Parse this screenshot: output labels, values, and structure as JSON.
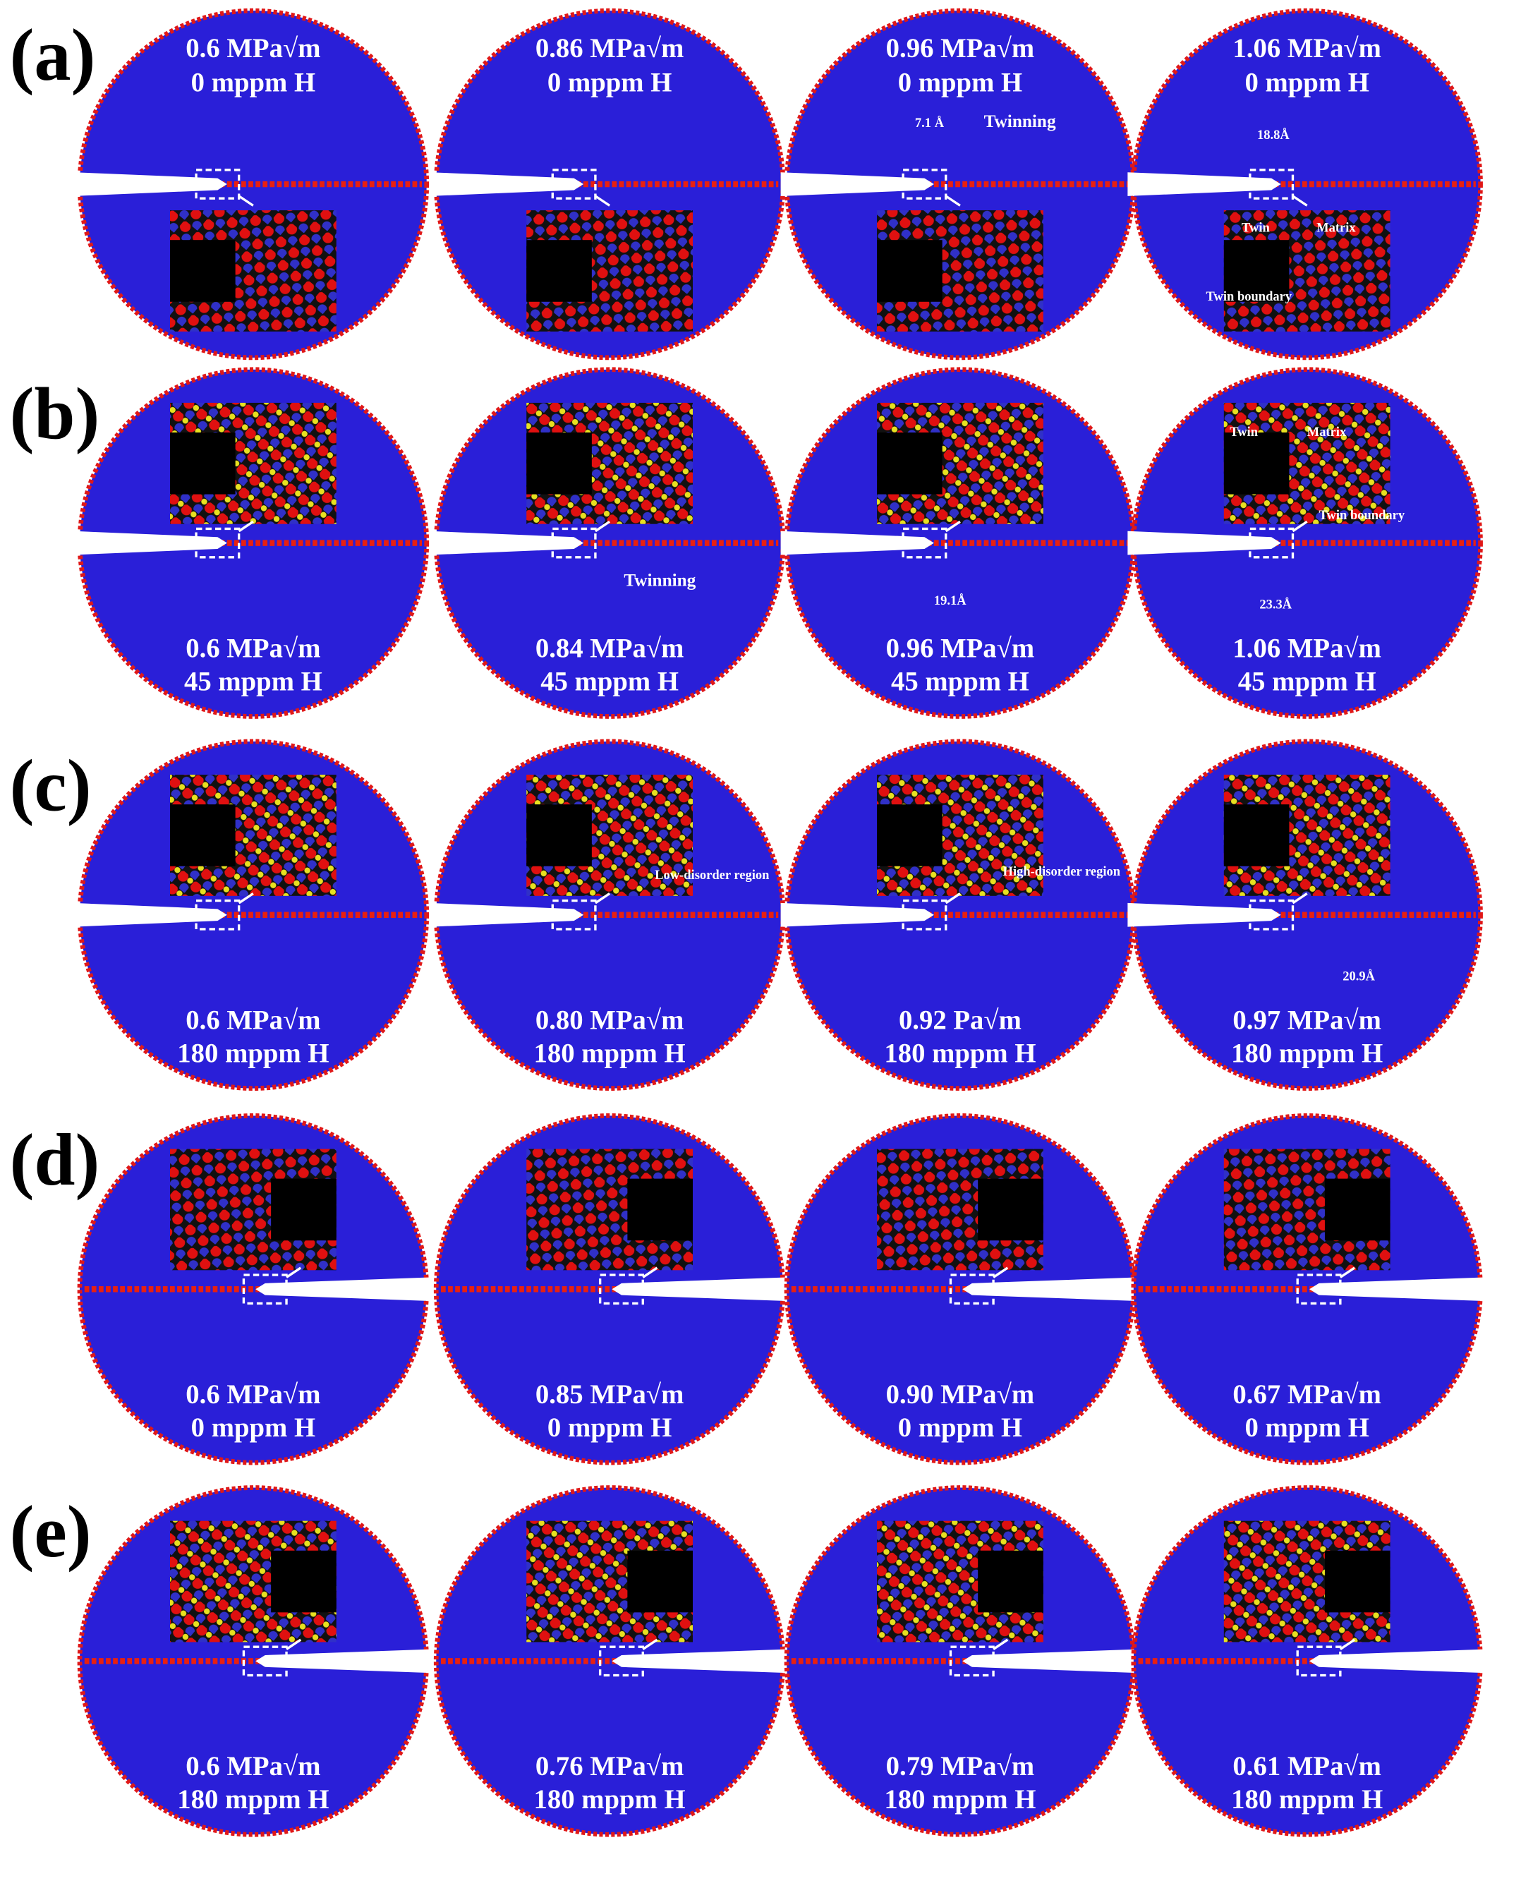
{
  "rows": [
    {
      "label": "(a)",
      "panels": [
        {
          "stress": "0.6 MPa√m",
          "hydrogen": "0 mppm H",
          "annotations": []
        },
        {
          "stress": "0.86 MPa√m",
          "hydrogen": "0 mppm H",
          "annotations": []
        },
        {
          "stress": "0.96 MPa√m",
          "hydrogen": "0 mppm H",
          "annotations": [
            "7.1 Å",
            "Twinning"
          ]
        },
        {
          "stress": "1.06 MPa√m",
          "hydrogen": "0 mppm H",
          "annotations": [
            "18.8Å",
            "Twin",
            "Matrix",
            "Twin boundary"
          ]
        }
      ]
    },
    {
      "label": "(b)",
      "panels": [
        {
          "stress": "0.6 MPa√m",
          "hydrogen": "45 mppm H",
          "annotations": []
        },
        {
          "stress": "0.84 MPa√m",
          "hydrogen": "45 mppm H",
          "annotations": [
            "Twinning"
          ]
        },
        {
          "stress": "0.96 MPa√m",
          "hydrogen": "45 mppm H",
          "annotations": [
            "19.1Å"
          ]
        },
        {
          "stress": "1.06 MPa√m",
          "hydrogen": "45 mppm H",
          "annotations": [
            "Twin",
            "Matrix",
            "Twin boundary",
            "23.3Å"
          ]
        }
      ]
    },
    {
      "label": "(c)",
      "panels": [
        {
          "stress": "0.6 MPa√m",
          "hydrogen": "180 mppm H",
          "annotations": []
        },
        {
          "stress": "0.80 MPa√m",
          "hydrogen": "180 mppm H",
          "annotations": [
            "Low-disorder region"
          ]
        },
        {
          "stress": "0.92 Pa√m",
          "hydrogen": "180 mppm H",
          "annotations": [
            "High-disorder region"
          ]
        },
        {
          "stress": "0.97 MPa√m",
          "hydrogen": "180 mppm H",
          "annotations": [
            "20.9Å"
          ]
        }
      ]
    },
    {
      "label": "(d)",
      "panels": [
        {
          "stress": "0.6 MPa√m",
          "hydrogen": "0 mppm H",
          "annotations": []
        },
        {
          "stress": "0.85 MPa√m",
          "hydrogen": "0 mppm H",
          "annotations": []
        },
        {
          "stress": "0.90 MPa√m",
          "hydrogen": "0 mppm H",
          "annotations": []
        },
        {
          "stress": "0.67 MPa√m",
          "hydrogen": "0 mppm H",
          "annotations": []
        }
      ]
    },
    {
      "label": "(e)",
      "panels": [
        {
          "stress": "0.6 MPa√m",
          "hydrogen": "180 mppm H",
          "annotations": []
        },
        {
          "stress": "0.76 MPa√m",
          "hydrogen": "180 mppm H",
          "annotations": []
        },
        {
          "stress": "0.79 MPa√m",
          "hydrogen": "180 mppm H",
          "annotations": []
        },
        {
          "stress": "0.61 MPa√m",
          "hydrogen": "180 mppm H",
          "annotations": []
        }
      ]
    }
  ]
}
